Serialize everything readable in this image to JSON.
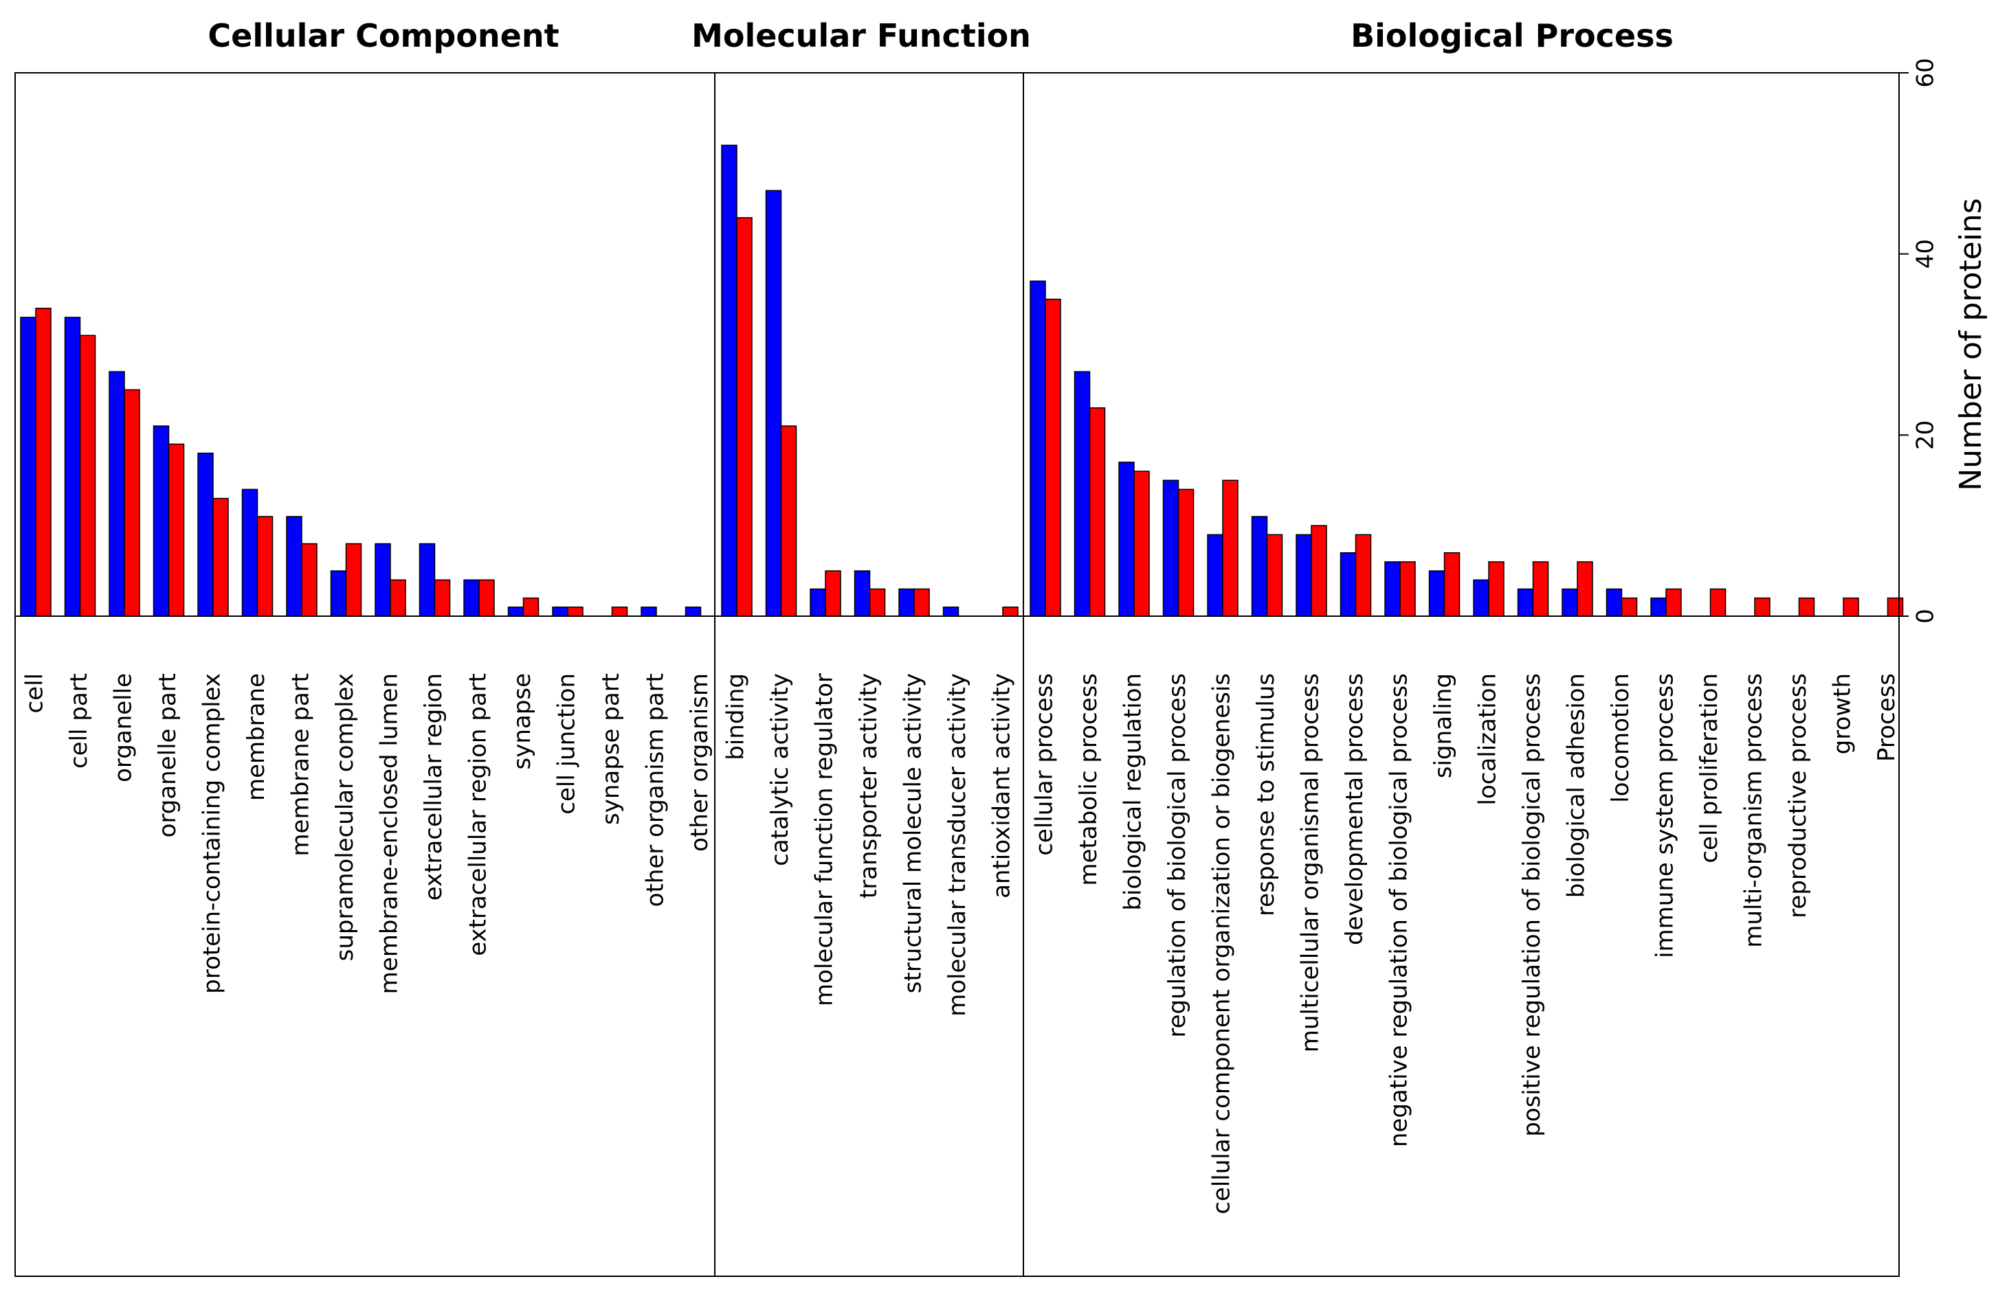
{
  "chart_data": {
    "type": "bar",
    "ylabel": "Number of proteins",
    "ylim": [
      0,
      60
    ],
    "yticks": [
      0,
      20,
      40,
      60
    ],
    "grid": false,
    "legend": "none",
    "y_axis_side": "right",
    "series_colors": [
      "#0000ff",
      "#ff0000"
    ],
    "groups": [
      {
        "title": "Cellular Component",
        "categories": [
          "cell",
          "cell part",
          "organelle",
          "organelle part",
          "protein-containing complex",
          "membrane",
          "membrane part",
          "supramolecular complex",
          "membrane-enclosed lumen",
          "extracellular region",
          "extracellular region part",
          "synapse",
          "cell junction",
          "synapse part",
          "other organism part",
          "other organism"
        ],
        "series": [
          {
            "values": [
              33,
              33,
              27,
              21,
              18,
              14,
              11,
              5,
              8,
              8,
              4,
              1,
              1,
              0,
              1,
              1
            ]
          },
          {
            "values": [
              34,
              31,
              25,
              19,
              13,
              11,
              8,
              8,
              4,
              4,
              4,
              2,
              1,
              1,
              0,
              0
            ]
          }
        ]
      },
      {
        "title": "Molecular Function",
        "categories": [
          "binding",
          "catalytic activity",
          "molecular function regulator",
          "transporter activity",
          "structural molecule activity",
          "molecular transducer activity",
          "antioxidant activity"
        ],
        "series": [
          {
            "values": [
              52,
              47,
              3,
              5,
              3,
              1,
              0
            ]
          },
          {
            "values": [
              44,
              21,
              5,
              3,
              3,
              0,
              1
            ]
          }
        ]
      },
      {
        "title": "Biological Process",
        "categories": [
          "cellular process",
          "metabolic process",
          "biological regulation",
          "regulation of biological process",
          "cellular component organization or biogenesis",
          "response to stimulus",
          "multicellular organismal process",
          "developmental process",
          "negative regulation of biological process",
          "signaling",
          "localization",
          "positive regulation of biological process",
          "biological adhesion",
          "locomotion",
          "immune system process",
          "cell proliferation",
          "multi-organism process",
          "reproductive process",
          "growth",
          "Process"
        ],
        "series": [
          {
            "values": [
              37,
              27,
              17,
              15,
              9,
              11,
              9,
              7,
              6,
              5,
              4,
              3,
              3,
              3,
              2,
              0,
              0,
              0,
              0,
              0
            ]
          },
          {
            "values": [
              35,
              23,
              16,
              14,
              15,
              9,
              10,
              9,
              6,
              7,
              6,
              6,
              6,
              2,
              3,
              3,
              2,
              2,
              2,
              2
            ]
          }
        ]
      }
    ]
  }
}
